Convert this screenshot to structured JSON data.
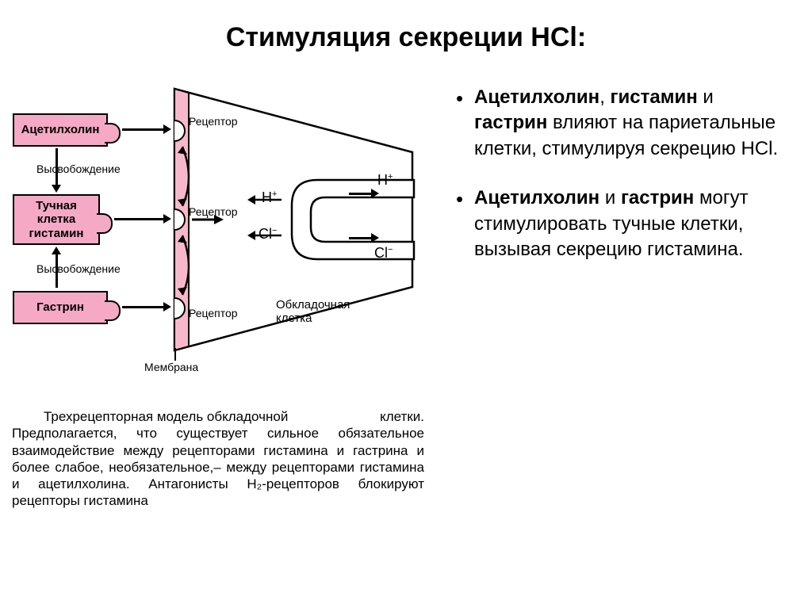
{
  "title": "Стимуляция секреции HCl:",
  "bullets": [
    {
      "html": true,
      "parts": [
        "Ацетилхолин",
        ", ",
        "гистамин",
        " и ",
        "гастрин",
        " влияют на париетальные клетки, стимулируя секрецию HCl."
      ],
      "bold": [
        0,
        2,
        4
      ]
    },
    {
      "html": true,
      "parts": [
        "Ацетилхолин",
        " и ",
        "гастрин",
        " могут стимулировать тучные клетки, вызывая секрецию гистамина."
      ],
      "bold": [
        0,
        2
      ]
    }
  ],
  "diagram": {
    "ligands": {
      "ach": "Ацетилхолин",
      "mast": "Тучная\nклетка\nгистамин",
      "gastrin": "Гастрин"
    },
    "labels": {
      "release": "Высвобождение",
      "receptor": "Рецептор",
      "membrane": "Мембрана",
      "parietal": "Обкладочная\nклетка",
      "h_plus": "H",
      "cl_minus": "Cl",
      "plus": "+",
      "minus": "−"
    },
    "colors": {
      "pink": "#f5a9c4",
      "membrane_pink": "#f8b8cc",
      "black": "#000000",
      "white": "#ffffff"
    }
  },
  "caption": {
    "line1": "Трехрецепторная модель обкладочной",
    "rest": "клетки. Предполагается, что существует сильное обязательное взаимодействие между рецепторами гистамина и гастрина и более слабое, необязательное,– между рецепторами гистамина и ацетилхолина. Антагонисты H₂-рецепторов блокируют рецепторы гистамина"
  }
}
